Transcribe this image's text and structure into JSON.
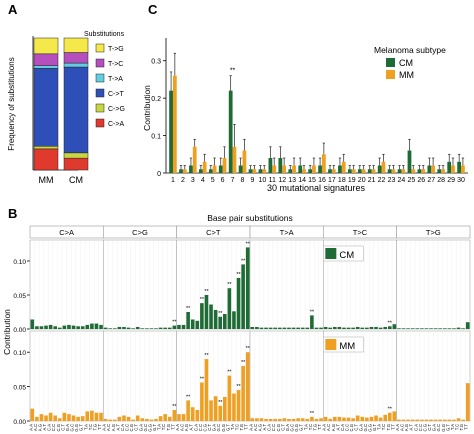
{
  "panel_labels": {
    "a": "A",
    "b": "B",
    "c": "C"
  },
  "colors": {
    "cm": "#1e6b35",
    "mm": "#f0a020",
    "c_to_a": "#e03a2f",
    "c_to_g": "#c8d640",
    "c_to_t": "#2e4fb8",
    "t_to_a": "#62cde0",
    "t_to_c": "#b64fbe",
    "t_to_g": "#f4e84a"
  },
  "chart_data": [
    {
      "id": "A",
      "type": "bar",
      "stacked": true,
      "title": "",
      "xlabel": "",
      "ylabel": "Frequency of substitutions",
      "ylim": [
        0,
        1
      ],
      "categories": [
        "MM",
        "CM"
      ],
      "legend_title": "Substitutions",
      "legend_placement": "right",
      "legend_items": [
        "T->G",
        "T->C",
        "T->A",
        "C->T",
        "C->G",
        "C->A"
      ],
      "series": [
        {
          "name": "C->A",
          "values": [
            0.16,
            0.09
          ]
        },
        {
          "name": "C->G",
          "values": [
            0.02,
            0.04
          ]
        },
        {
          "name": "C->T",
          "values": [
            0.59,
            0.65
          ]
        },
        {
          "name": "T->A",
          "values": [
            0.02,
            0.03
          ]
        },
        {
          "name": "T->C",
          "values": [
            0.09,
            0.08
          ]
        },
        {
          "name": "T->G",
          "values": [
            0.12,
            0.11
          ]
        }
      ]
    },
    {
      "id": "C",
      "type": "bar",
      "title": "",
      "xlabel": "30 mutational signatures",
      "ylabel": "Contribution",
      "ylim": [
        0,
        0.35
      ],
      "y_ticks": [
        "0",
        "0.1",
        "0.2",
        "0.3"
      ],
      "legend_title": "Melanoma subtype",
      "legend_placement": "top-right",
      "categories": [
        "1",
        "2",
        "3",
        "4",
        "5",
        "6",
        "7",
        "8",
        "9",
        "10",
        "11",
        "12",
        "13",
        "14",
        "15",
        "16",
        "17",
        "18",
        "19",
        "20",
        "21",
        "22",
        "23",
        "24",
        "25",
        "26",
        "27",
        "28",
        "29",
        "30"
      ],
      "significance": {
        "7": "**"
      },
      "series": [
        {
          "name": "CM",
          "values": [
            0.22,
            0.01,
            0.02,
            0.01,
            0.01,
            0.02,
            0.22,
            0.02,
            0.01,
            0.01,
            0.04,
            0.04,
            0.01,
            0.02,
            0.01,
            0.02,
            0.01,
            0.02,
            0.01,
            0.01,
            0.01,
            0.02,
            0.01,
            0.01,
            0.06,
            0.01,
            0.02,
            0.01,
            0.03,
            0.03
          ],
          "errors": [
            0.05,
            0.01,
            0.02,
            0.01,
            0.01,
            0.02,
            0.04,
            0.02,
            0.01,
            0.01,
            0.03,
            0.03,
            0.01,
            0.02,
            0.01,
            0.02,
            0.01,
            0.02,
            0.01,
            0.01,
            0.01,
            0.02,
            0.01,
            0.01,
            0.03,
            0.01,
            0.02,
            0.01,
            0.02,
            0.02
          ]
        },
        {
          "name": "MM",
          "values": [
            0.26,
            0.01,
            0.07,
            0.03,
            0.02,
            0.04,
            0.07,
            0.06,
            0.01,
            0.01,
            0.02,
            0.02,
            0.02,
            0.01,
            0.02,
            0.05,
            0.01,
            0.03,
            0.01,
            0.01,
            0.01,
            0.03,
            0.01,
            0.01,
            0.01,
            0.01,
            0.02,
            0.01,
            0.02,
            0.02
          ],
          "errors": [
            0.06,
            0.01,
            0.02,
            0.02,
            0.02,
            0.03,
            0.06,
            0.03,
            0.01,
            0.01,
            0.02,
            0.02,
            0.02,
            0.01,
            0.02,
            0.03,
            0.01,
            0.02,
            0.01,
            0.01,
            0.01,
            0.02,
            0.01,
            0.01,
            0.01,
            0.01,
            0.02,
            0.01,
            0.02,
            0.02
          ]
        }
      ]
    },
    {
      "id": "B",
      "type": "bar",
      "title": "Base pair substitutions",
      "xlabel": "",
      "ylabel": "Contribution",
      "ylim": [
        0,
        0.125
      ],
      "y_ticks": [
        "0.00",
        "0.05",
        "0.10"
      ],
      "facets": [
        "C>A",
        "C>G",
        "C>T",
        "T>A",
        "T>C",
        "T>G"
      ],
      "contexts": [
        "A.A",
        "A.C",
        "A.G",
        "A.T",
        "C.A",
        "C.C",
        "C.G",
        "C.T",
        "G.A",
        "G.C",
        "G.G",
        "G.T",
        "T.A",
        "T.C",
        "T.G",
        "T.T"
      ],
      "series": [
        {
          "name": "CM",
          "values": [
            [
              0.014,
              0.004,
              0.004,
              0.005,
              0.006,
              0.004,
              0.002,
              0.005,
              0.006,
              0.005,
              0.004,
              0.004,
              0.006,
              0.008,
              0.008,
              0.006
            ],
            [
              0.002,
              0.001,
              0.001,
              0.003,
              0.003,
              0.002,
              0.001,
              0.003,
              0.001,
              0.001,
              0.001,
              0.001,
              0.002,
              0.002,
              0.002,
              0.005
            ],
            [
              0.006,
              0.006,
              0.025,
              0.014,
              0.012,
              0.038,
              0.05,
              0.036,
              0.028,
              0.018,
              0.022,
              0.06,
              0.026,
              0.075,
              0.095,
              0.12
            ],
            [
              0.003,
              0.003,
              0.002,
              0.002,
              0.002,
              0.002,
              0.002,
              0.002,
              0.002,
              0.002,
              0.002,
              0.002,
              0.002,
              0.02,
              0.002,
              0.002
            ],
            [
              0.003,
              0.002,
              0.003,
              0.003,
              0.002,
              0.002,
              0.002,
              0.003,
              0.002,
              0.002,
              0.003,
              0.003,
              0.002,
              0.003,
              0.004,
              0.007
            ],
            [
              0.001,
              0.001,
              0.001,
              0.001,
              0.001,
              0.001,
              0.001,
              0.001,
              0.001,
              0.001,
              0.001,
              0.001,
              0.001,
              0.002,
              0.001,
              0.01
            ]
          ],
          "significance": [
            [],
            [
              15
            ],
            [
              2,
              5,
              6,
              9,
              11,
              13,
              14,
              15
            ],
            [
              13
            ],
            [
              14
            ],
            []
          ]
        },
        {
          "name": "MM",
          "values": [
            [
              0.018,
              0.006,
              0.01,
              0.008,
              0.012,
              0.008,
              0.004,
              0.012,
              0.01,
              0.008,
              0.006,
              0.007,
              0.014,
              0.015,
              0.012,
              0.012
            ],
            [
              0.003,
              0.002,
              0.002,
              0.006,
              0.008,
              0.006,
              0.002,
              0.008,
              0.004,
              0.003,
              0.002,
              0.003,
              0.007,
              0.01,
              0.006,
              0.016
            ],
            [
              0.01,
              0.01,
              0.03,
              0.02,
              0.016,
              0.056,
              0.09,
              0.03,
              0.036,
              0.022,
              0.035,
              0.066,
              0.04,
              0.045,
              0.08,
              0.1
            ],
            [
              0.004,
              0.004,
              0.004,
              0.003,
              0.003,
              0.003,
              0.003,
              0.004,
              0.003,
              0.003,
              0.004,
              0.004,
              0.003,
              0.006,
              0.003,
              0.004
            ],
            [
              0.006,
              0.003,
              0.006,
              0.006,
              0.005,
              0.005,
              0.004,
              0.008,
              0.006,
              0.005,
              0.006,
              0.008,
              0.005,
              0.009,
              0.012,
              0.014
            ],
            [
              0.002,
              0.002,
              0.002,
              0.002,
              0.002,
              0.002,
              0.002,
              0.002,
              0.002,
              0.002,
              0.002,
              0.002,
              0.002,
              0.004,
              0.002,
              0.055
            ]
          ],
          "significance": [
            [],
            [
              15
            ],
            [
              2,
              5,
              6,
              9,
              11,
              13,
              14,
              15
            ],
            [
              13
            ],
            [
              14
            ],
            []
          ]
        }
      ]
    }
  ]
}
